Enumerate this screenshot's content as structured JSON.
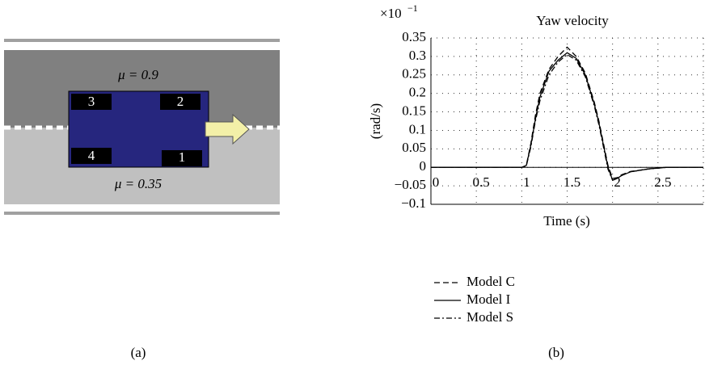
{
  "diagram": {
    "mu_top": "μ = 0.9",
    "mu_bottom": "μ = 0.35",
    "wheels": [
      "1",
      "2",
      "3",
      "4"
    ],
    "caption": "(a)"
  },
  "caption_b": "(b)",
  "chart_data": {
    "type": "line",
    "title": "Yaw velocity",
    "y_multiplier_base": "×10",
    "y_multiplier_exp": "−1",
    "x_label": "Time (s)",
    "y_label": "(rad/s)",
    "x": [
      0,
      0.5,
      1.0,
      1.05,
      1.1,
      1.15,
      1.2,
      1.3,
      1.4,
      1.5,
      1.6,
      1.7,
      1.8,
      1.85,
      1.9,
      1.95,
      2.0,
      2.05,
      2.1,
      2.2,
      2.4,
      2.6,
      3.0
    ],
    "series": [
      {
        "name": "Model C",
        "color": "#000000",
        "line_style": "dashed",
        "values": [
          0,
          0,
          0,
          0.005,
          0.065,
          0.14,
          0.2,
          0.265,
          0.3,
          0.325,
          0.3,
          0.255,
          0.175,
          0.125,
          0.065,
          0.005,
          -0.03,
          -0.028,
          -0.02,
          -0.011,
          -0.004,
          0,
          0
        ]
      },
      {
        "name": "Model I",
        "color": "#000000",
        "line_style": "solid",
        "values": [
          0,
          0,
          0,
          0.005,
          0.06,
          0.13,
          0.19,
          0.26,
          0.29,
          0.31,
          0.295,
          0.25,
          0.17,
          0.12,
          0.06,
          0,
          -0.035,
          -0.03,
          -0.022,
          -0.012,
          -0.004,
          0,
          0
        ]
      },
      {
        "name": "Model S",
        "color": "#000000",
        "line_style": "dashdot",
        "values": [
          0,
          0,
          0,
          0.004,
          0.055,
          0.125,
          0.18,
          0.25,
          0.285,
          0.305,
          0.29,
          0.245,
          0.165,
          0.115,
          0.055,
          -0.005,
          -0.035,
          -0.03,
          -0.022,
          -0.012,
          -0.004,
          0,
          0
        ]
      }
    ],
    "xlim": [
      0,
      3
    ],
    "xticks": [
      0,
      0.5,
      1,
      1.5,
      2,
      2.5,
      3
    ],
    "ylim": [
      -0.1,
      0.35
    ],
    "yticks": [
      {
        "value": -0.1,
        "label": "−0.1"
      },
      {
        "value": -0.05,
        "label": "−0.05"
      },
      0,
      0.05,
      0.1,
      0.15,
      0.2,
      0.25,
      0.3,
      0.35
    ],
    "grid": true,
    "legend": "below"
  }
}
